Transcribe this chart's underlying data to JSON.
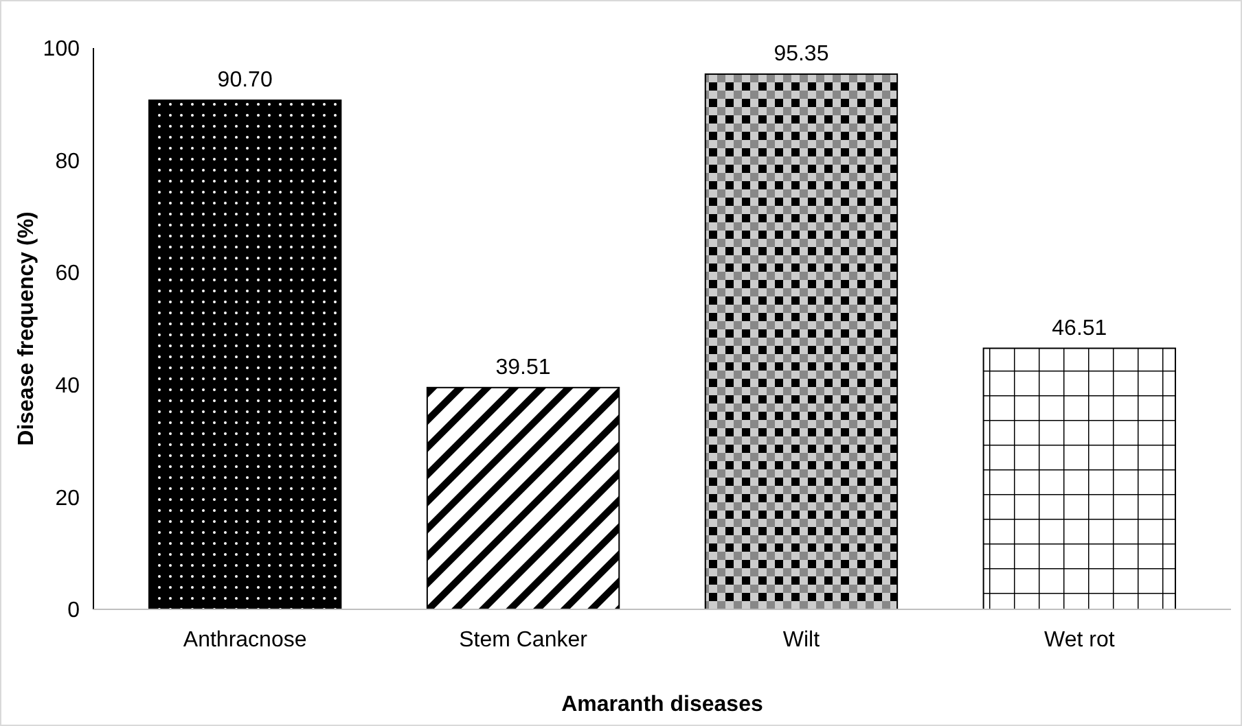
{
  "chart_data": {
    "type": "bar",
    "xlabel": "Amaranth diseases",
    "ylabel": "Disease frequency (%)",
    "categories": [
      "Anthracnose",
      "Stem Canker",
      "Wilt",
      "Wet rot"
    ],
    "values": [
      90.7,
      39.51,
      95.35,
      46.51
    ],
    "value_labels": [
      "90.70",
      "39.51",
      "95.35",
      "46.51"
    ],
    "colors": [
      "#000000",
      "#000000",
      "#000000",
      "#000000"
    ],
    "ylim": [
      0,
      100
    ],
    "yticks": [
      0,
      20,
      40,
      60,
      80,
      100
    ],
    "grid": false
  }
}
